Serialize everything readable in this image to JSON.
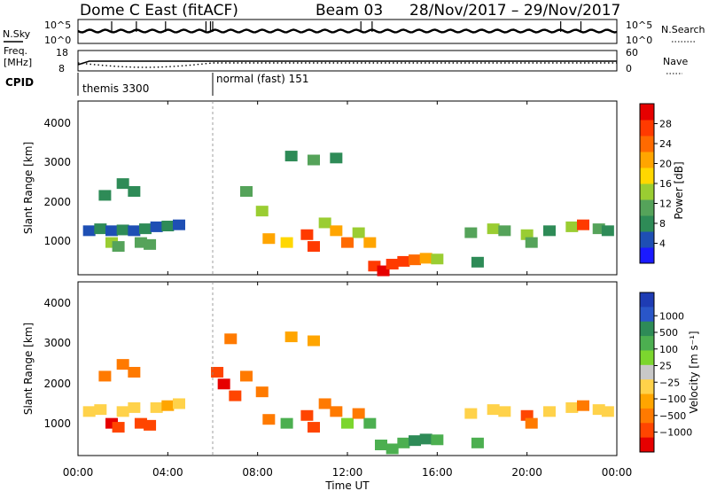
{
  "header": {
    "station": "Dome C East (fitACF)",
    "beam": "Beam 03",
    "dates": "28/Nov/2017 – 29/Nov/2017"
  },
  "nsky": {
    "label": "N.Sky",
    "right_label": "N.Search",
    "ticks_left": [
      "10^5",
      "10^0"
    ],
    "ticks_right": [
      "10^5",
      "10^0"
    ]
  },
  "freq": {
    "label_line1": "Freq.",
    "label_line2": "[MHz]",
    "right_label": "Nave",
    "ticks_left": [
      "18",
      "8"
    ],
    "ticks_right": [
      "60",
      "0"
    ]
  },
  "cpid": {
    "label": "CPID",
    "segments": [
      {
        "label": "themis 3300",
        "start_hour": 0
      },
      {
        "label": "normal (fast) 151",
        "start_hour": 6
      }
    ]
  },
  "x_axis": {
    "label": "Time UT",
    "ticks": [
      "00:00",
      "04:00",
      "08:00",
      "12:00",
      "16:00",
      "20:00",
      "00:00"
    ],
    "tick_hours": [
      0,
      4,
      8,
      12,
      16,
      20,
      24
    ]
  },
  "chart_data": [
    {
      "type": "heatmap",
      "panel": "power",
      "ylabel": "Slant Range [km]",
      "yticks": [
        "1000",
        "2000",
        "3000",
        "4000"
      ],
      "ylim": [
        180,
        4600
      ],
      "xlim_hours": [
        0,
        24
      ],
      "colorbar": {
        "label": "Power [dB]",
        "ticks": [
          "4",
          "8",
          "12",
          "16",
          "20",
          "24",
          "28"
        ],
        "colors": [
          "#1a1aff",
          "#1e4fb4",
          "#2e8b57",
          "#55a35a",
          "#9acd32",
          "#ffd700",
          "#ffa500",
          "#ff6a00",
          "#ff3a00",
          "#e60000"
        ]
      },
      "cells": [
        [
          0.5,
          1300,
          4
        ],
        [
          1.0,
          1350,
          6
        ],
        [
          1.5,
          1300,
          5
        ],
        [
          2.0,
          1320,
          6
        ],
        [
          2.5,
          1300,
          5
        ],
        [
          3.0,
          1350,
          6
        ],
        [
          3.5,
          1400,
          5
        ],
        [
          4.0,
          1420,
          6
        ],
        [
          4.5,
          1450,
          5
        ],
        [
          1.5,
          1000,
          12
        ],
        [
          1.8,
          900,
          10
        ],
        [
          2.8,
          1000,
          11
        ],
        [
          3.2,
          950,
          9
        ],
        [
          1.2,
          2200,
          6
        ],
        [
          2.0,
          2500,
          7
        ],
        [
          2.5,
          2300,
          8
        ],
        [
          7.5,
          2300,
          9
        ],
        [
          8.2,
          1800,
          12
        ],
        [
          8.5,
          1100,
          18
        ],
        [
          9.3,
          1000,
          16
        ],
        [
          10.2,
          1200,
          24
        ],
        [
          10.5,
          900,
          26
        ],
        [
          11.0,
          1500,
          14
        ],
        [
          11.5,
          1300,
          20
        ],
        [
          12.0,
          1000,
          22
        ],
        [
          12.5,
          1250,
          12
        ],
        [
          13.0,
          1000,
          18
        ],
        [
          13.2,
          400,
          26
        ],
        [
          13.6,
          280,
          28
        ],
        [
          14.0,
          450,
          24
        ],
        [
          14.5,
          520,
          26
        ],
        [
          15.0,
          560,
          22
        ],
        [
          15.5,
          600,
          18
        ],
        [
          16.0,
          580,
          12
        ],
        [
          17.5,
          1250,
          10
        ],
        [
          17.8,
          500,
          8
        ],
        [
          18.5,
          1350,
          12
        ],
        [
          19.0,
          1300,
          10
        ],
        [
          20.0,
          1200,
          14
        ],
        [
          20.2,
          1000,
          11
        ],
        [
          21.0,
          1300,
          8
        ],
        [
          22.0,
          1400,
          12
        ],
        [
          22.5,
          1450,
          24
        ],
        [
          23.2,
          1350,
          10
        ],
        [
          23.6,
          1300,
          8
        ],
        [
          9.5,
          3200,
          8
        ],
        [
          10.5,
          3100,
          10
        ],
        [
          11.5,
          3150,
          7
        ]
      ]
    },
    {
      "type": "heatmap",
      "panel": "velocity",
      "ylabel": "Slant Range [km]",
      "yticks": [
        "1000",
        "2000",
        "3000",
        "4000"
      ],
      "ylim": [
        180,
        4600
      ],
      "xlim_hours": [
        0,
        24
      ],
      "colorbar": {
        "label": "Velocity [m s⁻¹]",
        "ticks": [
          "1000",
          "500",
          "100",
          "25",
          "−25",
          "−100",
          "−500",
          "−1000"
        ],
        "colors": [
          "#1e3cb4",
          "#2a56c8",
          "#2e8b57",
          "#4caf50",
          "#7cd62e",
          "#c8c8c8",
          "#ffd24a",
          "#ffa500",
          "#ff7a00",
          "#ff4500",
          "#e60000"
        ]
      },
      "cells": [
        [
          0.5,
          1300,
          -20
        ],
        [
          1.0,
          1350,
          -10
        ],
        [
          1.5,
          1000,
          -600
        ],
        [
          1.8,
          900,
          -500
        ],
        [
          2.0,
          1300,
          10
        ],
        [
          2.5,
          1400,
          -20
        ],
        [
          2.8,
          1000,
          -400
        ],
        [
          3.2,
          950,
          -300
        ],
        [
          3.5,
          1400,
          10
        ],
        [
          4.0,
          1450,
          -30
        ],
        [
          4.5,
          1500,
          20
        ],
        [
          1.2,
          2200,
          -200
        ],
        [
          2.0,
          2500,
          -150
        ],
        [
          2.5,
          2300,
          -250
        ],
        [
          6.2,
          2300,
          -450
        ],
        [
          6.5,
          2000,
          -600
        ],
        [
          7.0,
          1700,
          -350
        ],
        [
          7.5,
          2200,
          -250
        ],
        [
          8.2,
          1800,
          -200
        ],
        [
          8.5,
          1100,
          -150
        ],
        [
          9.3,
          1000,
          150
        ],
        [
          10.2,
          1200,
          -300
        ],
        [
          10.5,
          900,
          -450
        ],
        [
          11.0,
          1500,
          -200
        ],
        [
          11.5,
          1300,
          -250
        ],
        [
          12.0,
          1000,
          80
        ],
        [
          12.5,
          1250,
          -150
        ],
        [
          13.0,
          1000,
          120
        ],
        [
          13.5,
          450,
          200
        ],
        [
          14.0,
          350,
          150
        ],
        [
          14.5,
          500,
          100
        ],
        [
          15.0,
          560,
          250
        ],
        [
          15.5,
          600,
          300
        ],
        [
          16.0,
          580,
          200
        ],
        [
          17.5,
          1250,
          10
        ],
        [
          17.8,
          500,
          150
        ],
        [
          18.5,
          1350,
          -20
        ],
        [
          19.0,
          1300,
          20
        ],
        [
          20.0,
          1200,
          -300
        ],
        [
          20.2,
          1000,
          -250
        ],
        [
          21.0,
          1300,
          10
        ],
        [
          22.0,
          1400,
          -20
        ],
        [
          22.5,
          1450,
          -200
        ],
        [
          23.2,
          1350,
          10
        ],
        [
          23.6,
          1300,
          -10
        ],
        [
          9.5,
          3200,
          -80
        ],
        [
          10.5,
          3100,
          -60
        ],
        [
          6.8,
          3150,
          -120
        ]
      ]
    }
  ]
}
